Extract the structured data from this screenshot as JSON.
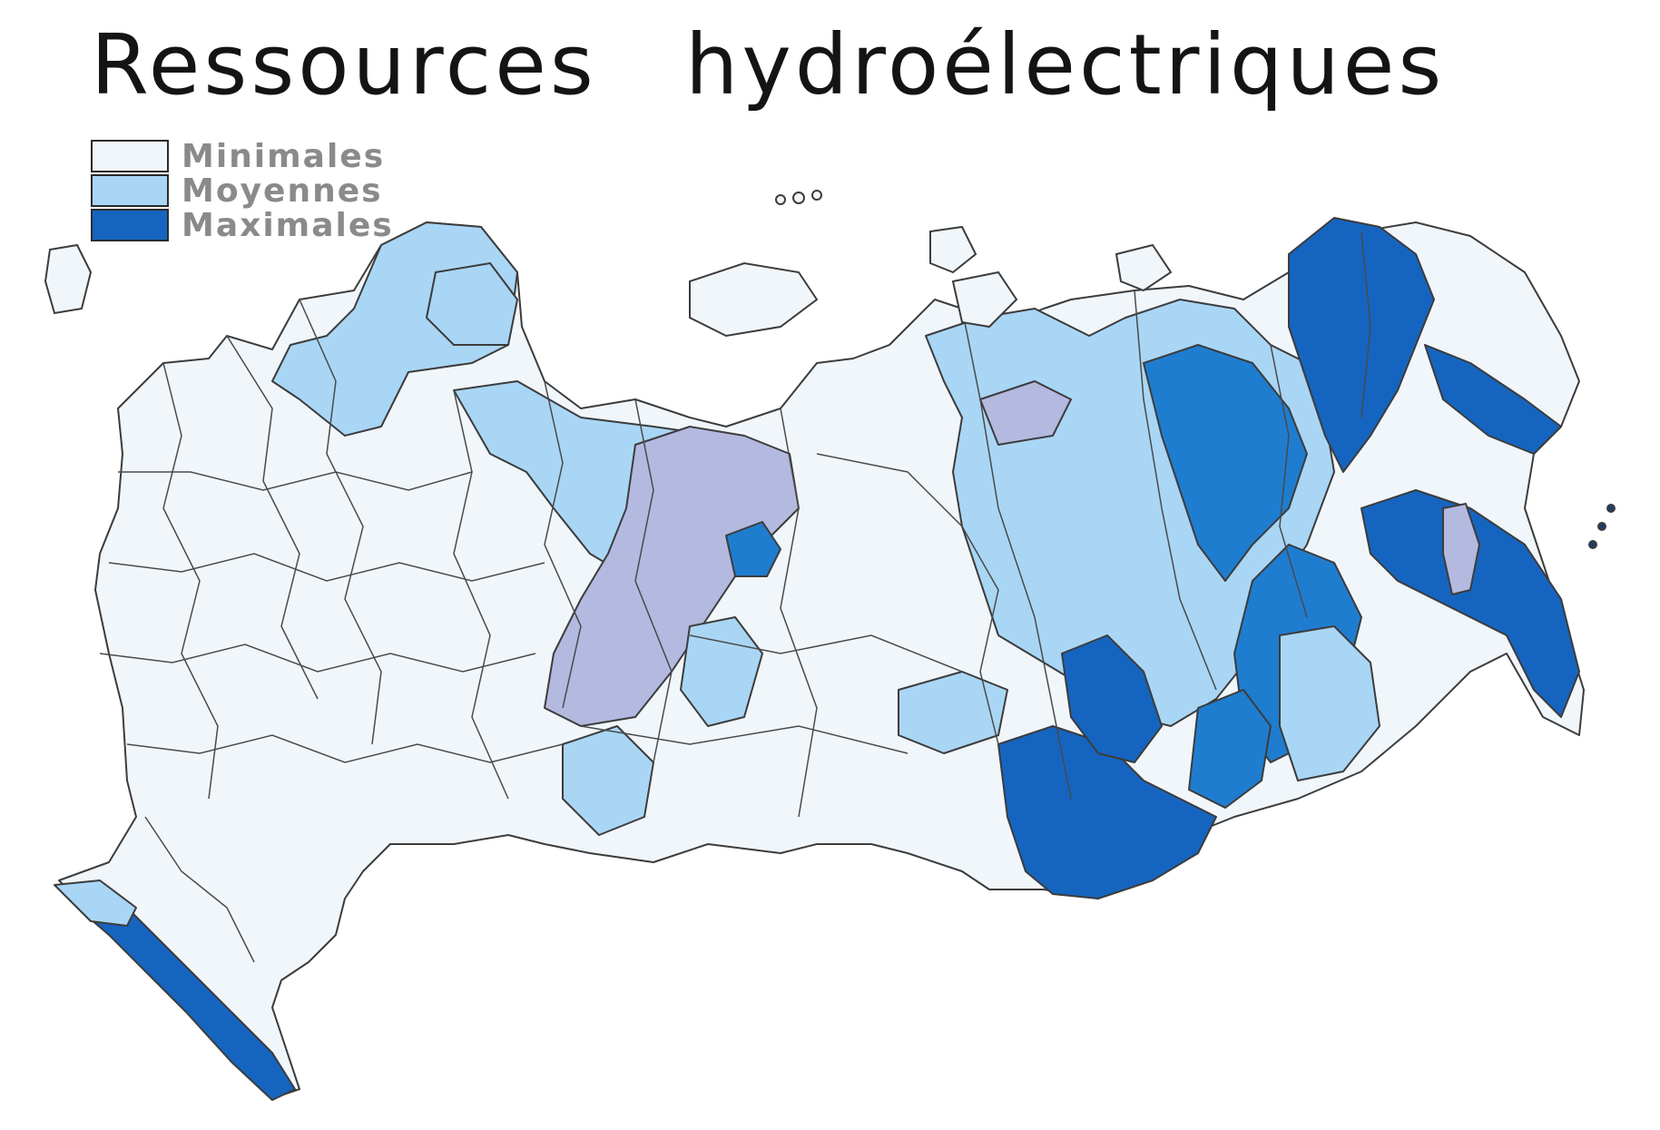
{
  "title": "Ressources hydroélectriques",
  "legend": {
    "items": [
      {
        "label": "Minimales",
        "color": "#f1f6fb"
      },
      {
        "label": "Moyennes",
        "color": "#a9d6f5"
      },
      {
        "label": "Maximales",
        "color": "#1565c0"
      }
    ]
  },
  "colors": {
    "low": "#f1f6fb",
    "medium": "#a9d6f5",
    "high": "#1f7dd0",
    "max": "#1565c0",
    "purple_tint": "#b4b9e0",
    "border": "#3c3c3c"
  }
}
